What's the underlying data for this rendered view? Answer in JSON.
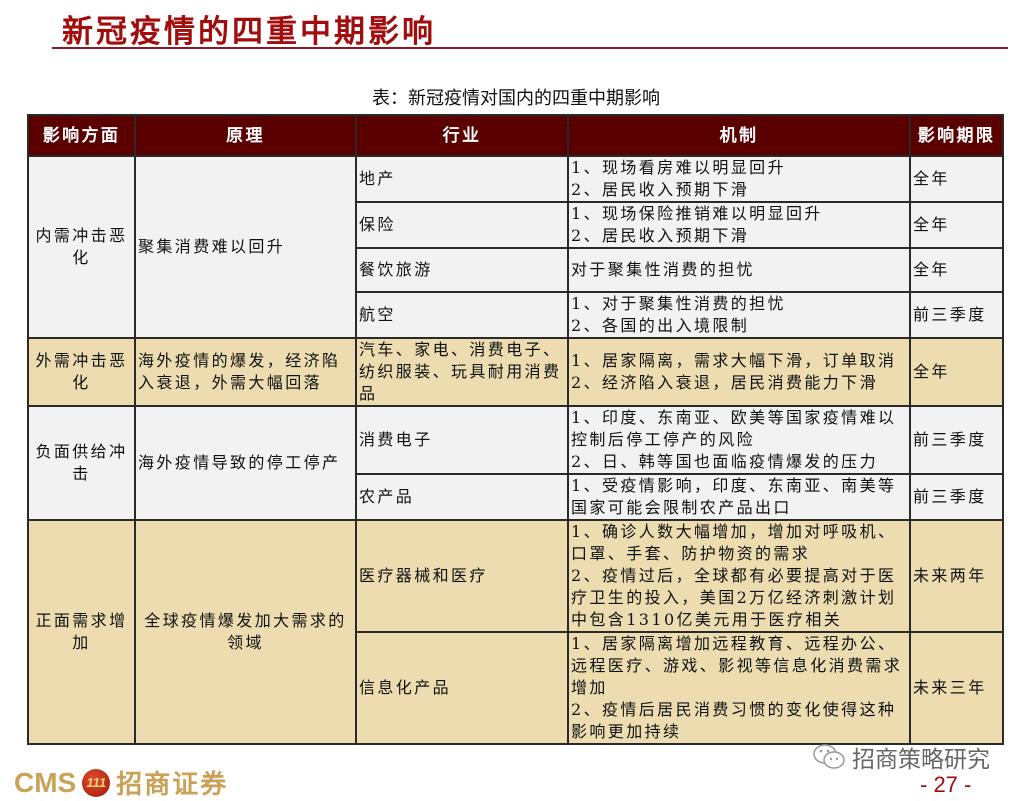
{
  "slide_title": "新冠疫情的四重中期影响",
  "table_caption": "表：新冠疫情对国内的四重中期影响",
  "columns": [
    "影响方面",
    "原理",
    "行业",
    "机制",
    "影响期限"
  ],
  "groups": [
    {
      "aspect": "内需冲击恶化",
      "principle": "聚集消费难以回升",
      "rows": [
        {
          "industry": "地产",
          "mechanism": "1、现场看房难以明显回升\n2、居民收入预期下滑",
          "period": "全年"
        },
        {
          "industry": "保险",
          "mechanism": "1、现场保险推销难以明显回升\n2、居民收入预期下滑",
          "period": "全年"
        },
        {
          "industry": "餐饮旅游",
          "mechanism": "对于聚集性消费的担忧",
          "period": "全年"
        },
        {
          "industry": "航空",
          "mechanism": "1、对于聚集性消费的担忧\n2、各国的出入境限制",
          "period": "前三季度"
        }
      ]
    },
    {
      "aspect": "外需冲击恶化",
      "principle": "海外疫情的爆发，经济陷入衰退，外需大幅回落",
      "rows": [
        {
          "industry": "汽车、家电、消费电子、纺织服装、玩具耐用消费品",
          "mechanism": "1、居家隔离，需求大幅下滑，订单取消\n2、经济陷入衰退，居民消费能力下滑",
          "period": "全年"
        }
      ]
    },
    {
      "aspect": "负面供给冲击",
      "principle": "海外疫情导致的停工停产",
      "rows": [
        {
          "industry": "消费电子",
          "mechanism": "1、印度、东南亚、欧美等国家疫情难以控制后停工停产的风险\n2、日、韩等国也面临疫情爆发的压力",
          "period": "前三季度"
        },
        {
          "industry": "农产品",
          "mechanism": "1、受疫情影响，印度、东南亚、南美等国家可能会限制农产品出口",
          "period": "前三季度"
        }
      ]
    },
    {
      "aspect": "正面需求增加",
      "principle": "全球疫情爆发加大需求的领域",
      "rows": [
        {
          "industry": "医疗器械和医疗",
          "mechanism": "1、确诊人数大幅增加，增加对呼吸机、口罩、手套、防护物资的需求\n2、疫情过后，全球都有必要提高对于医疗卫生的投入，美国2万亿经济刺激计划中包含1310亿美元用于医疗相关",
          "period": "未来两年"
        },
        {
          "industry": "信息化产品",
          "mechanism": "1、居家隔离增加远程教育、远程办公、远程医疗、游戏、影视等信息化消费需求增加\n2、疫情后居民消费习惯的变化使得这种影响更加持续",
          "period": "未来三年"
        }
      ]
    }
  ],
  "watermark": "招商策略研究",
  "page_number": "- 27 -",
  "logo": {
    "cms": "CMS",
    "badge": "111",
    "name": "招商证券"
  },
  "colors": {
    "header_bg": "#5a0000",
    "title": "#a10d0d",
    "row_gray": "#f2f2f2",
    "row_tan": "#ecdcb0"
  }
}
